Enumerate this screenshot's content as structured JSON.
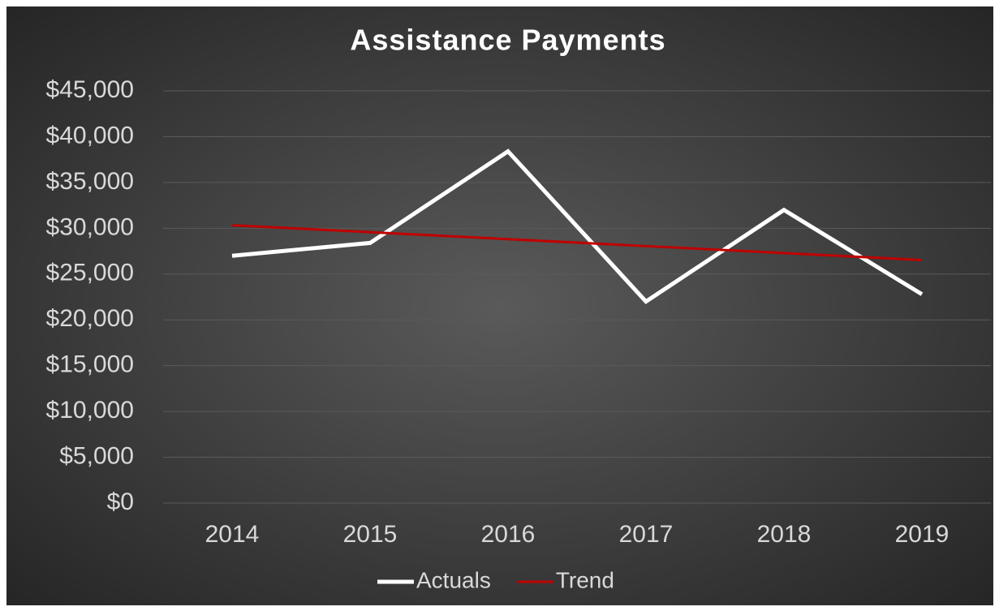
{
  "chart_data": {
    "type": "line",
    "title": "Assistance Payments",
    "categories": [
      "2014",
      "2015",
      "2016",
      "2017",
      "2018",
      "2019"
    ],
    "series": [
      {
        "name": "Actuals",
        "color": "#ffffff",
        "values": [
          27000,
          28400,
          38400,
          22000,
          32000,
          22800
        ]
      },
      {
        "name": "Trend",
        "color": "#c00000",
        "values": [
          30333,
          29573,
          28813,
          28053,
          27293,
          26533
        ]
      }
    ],
    "ylim": [
      0,
      45000
    ],
    "yticks": [
      {
        "value": 0,
        "label": "$0"
      },
      {
        "value": 5000,
        "label": "$5,000"
      },
      {
        "value": 10000,
        "label": "$10,000"
      },
      {
        "value": 15000,
        "label": "$15,000"
      },
      {
        "value": 20000,
        "label": "$20,000"
      },
      {
        "value": 25000,
        "label": "$25,000"
      },
      {
        "value": 30000,
        "label": "$30,000"
      },
      {
        "value": 35000,
        "label": "$35,000"
      },
      {
        "value": 40000,
        "label": "$40,000"
      },
      {
        "value": 45000,
        "label": "$45,000"
      }
    ],
    "grid": true,
    "legend": "bottom"
  }
}
